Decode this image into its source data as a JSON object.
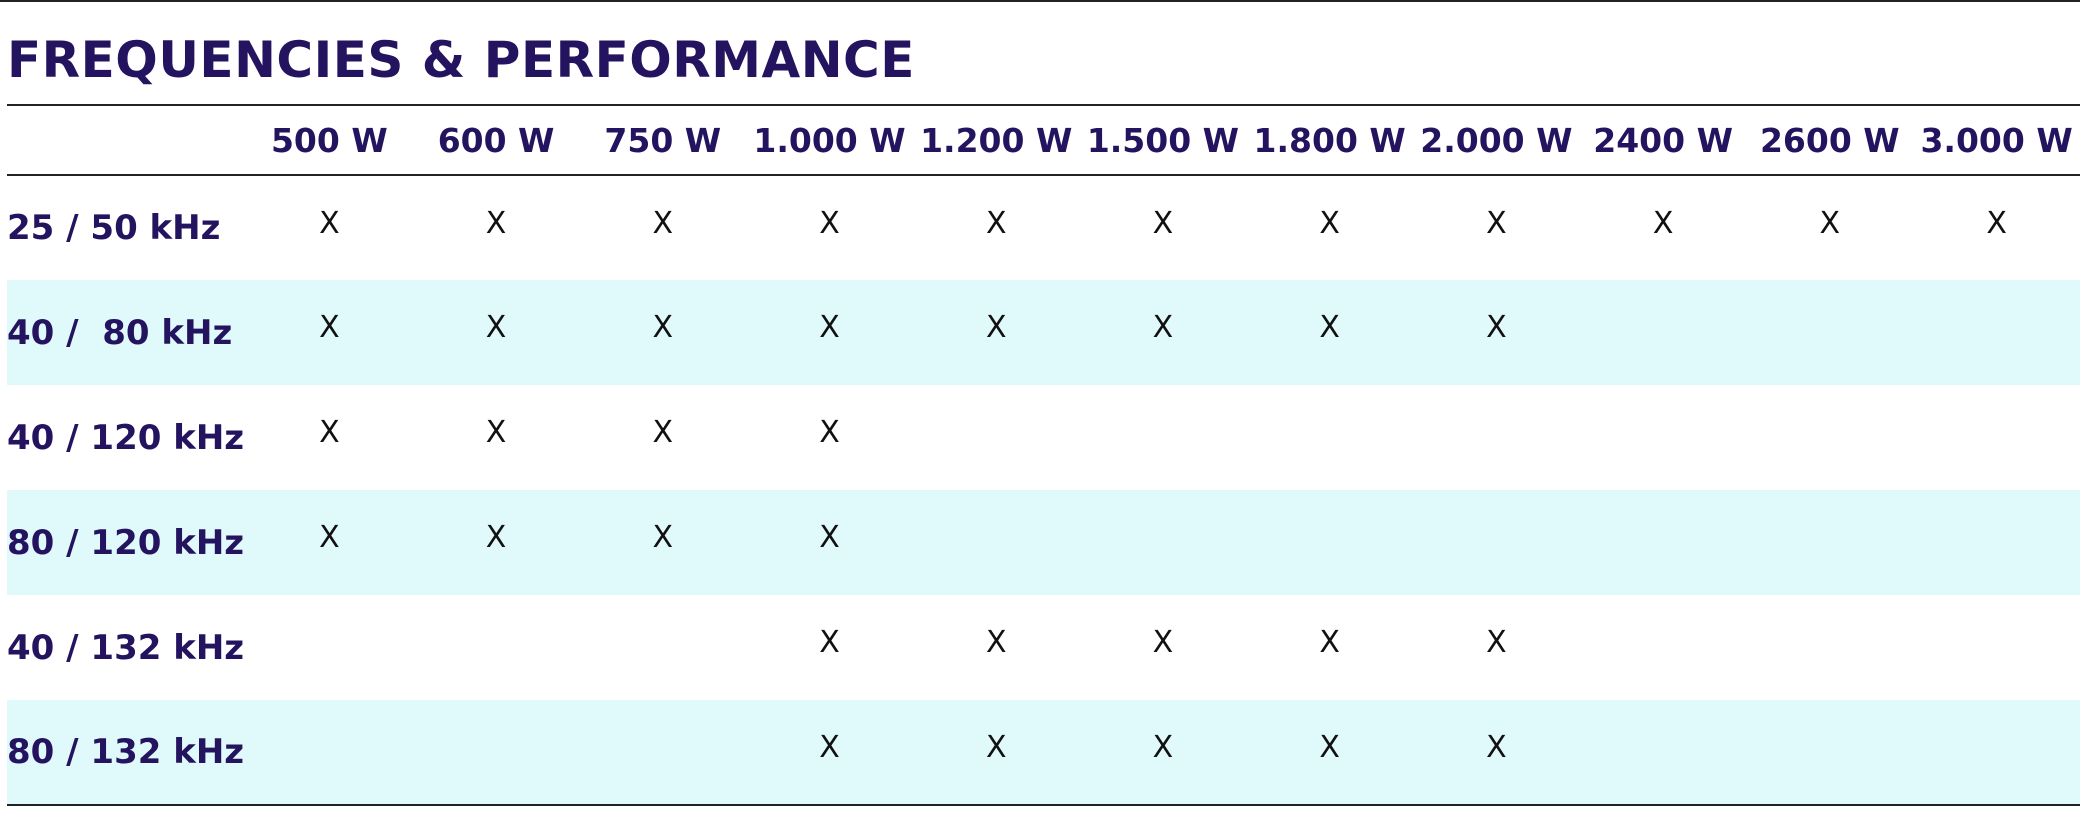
{
  "title": "FREQUENCIES & PERFORMANCE",
  "table": {
    "columns": [
      "500 W",
      "600 W",
      "750 W",
      "1.000 W",
      "1.200 W",
      "1.500 W",
      "1.800 W",
      "2.000 W",
      "2400 W",
      "2600 W",
      "3.000 W"
    ],
    "rows": [
      {
        "label": "25 / 50 kHz",
        "cells": [
          "X",
          "X",
          "X",
          "X",
          "X",
          "X",
          "X",
          "X",
          "X",
          "X",
          "X"
        ]
      },
      {
        "label": "40 /  80 kHz",
        "cells": [
          "X",
          "X",
          "X",
          "X",
          "X",
          "X",
          "X",
          "X",
          null,
          null,
          null
        ]
      },
      {
        "label": "40 / 120 kHz",
        "cells": [
          "X",
          "X",
          "X",
          "X",
          null,
          null,
          null,
          null,
          null,
          null,
          null
        ]
      },
      {
        "label": "80 / 120 kHz",
        "cells": [
          "X",
          "X",
          "X",
          "X",
          null,
          null,
          null,
          null,
          null,
          null,
          null
        ]
      },
      {
        "label": "40 / 132 kHz",
        "cells": [
          null,
          null,
          null,
          "X",
          "X",
          "X",
          "X",
          "X",
          null,
          null,
          null
        ]
      },
      {
        "label": "80 / 132 kHz",
        "cells": [
          null,
          null,
          null,
          "X",
          "X",
          "X",
          "X",
          "X",
          null,
          null,
          null
        ]
      }
    ]
  }
}
